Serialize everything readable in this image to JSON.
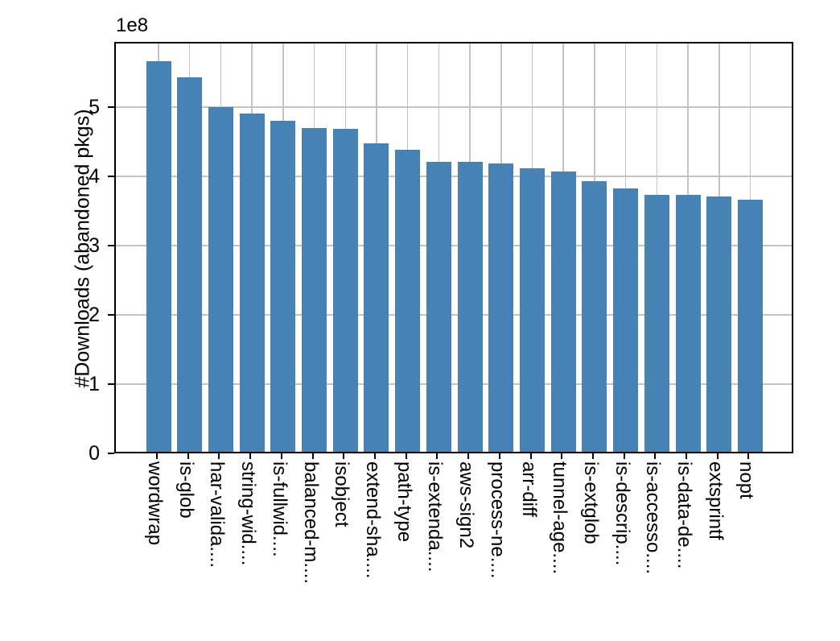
{
  "figure": {
    "background": "#ffffff"
  },
  "chart_data": {
    "type": "bar",
    "title": "",
    "xlabel": "",
    "ylabel": "#Downloads (abandoned pkgs)",
    "y_offset_label": "1e8",
    "categories": [
      "wordwrap",
      "is-glob",
      "har-valida....",
      "string-wid....",
      "is-fullwid....",
      "balanced-m....",
      "isobject",
      "extend-sha....",
      "path-type",
      "is-extenda....",
      "aws-sign2",
      "process-ne....",
      "arr-diff",
      "tunnel-age....",
      "is-extglob",
      "is-descrip....",
      "is-accesso....",
      "is-data-de....",
      "extsprintf",
      "nopt"
    ],
    "values": [
      566000000,
      543000000,
      500000000,
      491000000,
      480000000,
      470000000,
      468000000,
      447000000,
      438000000,
      421000000,
      421000000,
      419000000,
      411000000,
      407000000,
      393000000,
      382000000,
      373000000,
      373000000,
      371000000,
      366000000
    ],
    "yticks": [
      0,
      1,
      2,
      3,
      4,
      5
    ],
    "ytick_unit": 100000000,
    "ylim": [
      0,
      594000000
    ],
    "grid": true,
    "legend_position": "none",
    "bar_color": "#4682b4",
    "grid_color": "#c3c3c3",
    "axis_color": "#000000",
    "text_color": "#000000"
  }
}
